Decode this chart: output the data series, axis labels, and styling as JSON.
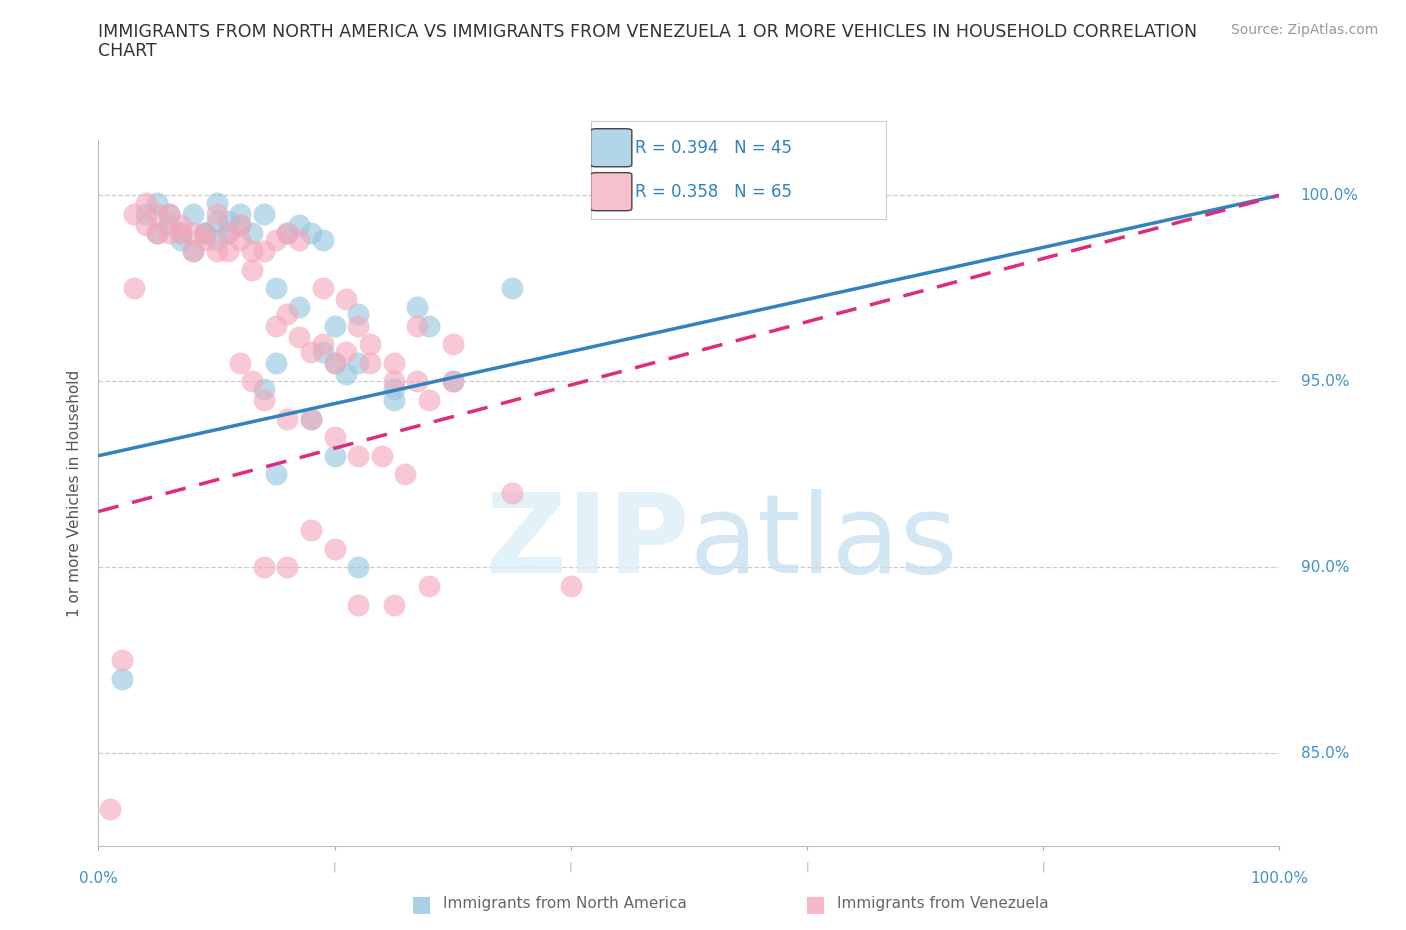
{
  "title_line1": "IMMIGRANTS FROM NORTH AMERICA VS IMMIGRANTS FROM VENEZUELA 1 OR MORE VEHICLES IN HOUSEHOLD CORRELATION",
  "title_line2": "CHART",
  "source": "Source: ZipAtlas.com",
  "ylabel": "1 or more Vehicles in Household",
  "yticks": [
    85.0,
    90.0,
    95.0,
    100.0
  ],
  "ytick_labels": [
    "85.0%",
    "90.0%",
    "95.0%",
    "100.0%"
  ],
  "xrange": [
    0.0,
    1.0
  ],
  "yrange": [
    82.5,
    101.5
  ],
  "blue_color": "#92c5de",
  "pink_color": "#f4a6b8",
  "trend_blue": "#3182bd",
  "trend_pink": "#de2d80",
  "legend_r_blue": "R = 0.394",
  "legend_n_blue": "N = 45",
  "legend_r_pink": "R = 0.358",
  "legend_n_pink": "N = 65",
  "legend_text_color": "#3182bd",
  "blue_label": "Immigrants from North America",
  "pink_label": "Immigrants from Venezuela",
  "blue_points_x": [
    0.02,
    0.04,
    0.05,
    0.05,
    0.06,
    0.06,
    0.07,
    0.07,
    0.08,
    0.08,
    0.09,
    0.09,
    0.1,
    0.1,
    0.1,
    0.11,
    0.11,
    0.12,
    0.12,
    0.13,
    0.14,
    0.15,
    0.16,
    0.17,
    0.18,
    0.19,
    0.2,
    0.22,
    0.25,
    0.28,
    0.19,
    0.2,
    0.21,
    0.3,
    0.22,
    0.25,
    0.27,
    0.35,
    0.15,
    0.14,
    0.15,
    0.17,
    0.18,
    0.2,
    0.22
  ],
  "blue_points_y": [
    87.0,
    99.5,
    99.8,
    99.0,
    99.5,
    99.2,
    99.0,
    98.8,
    99.5,
    98.5,
    99.0,
    99.0,
    99.3,
    98.8,
    99.8,
    99.0,
    99.3,
    99.2,
    99.5,
    99.0,
    99.5,
    97.5,
    99.0,
    99.2,
    99.0,
    98.8,
    96.5,
    96.8,
    94.5,
    96.5,
    95.8,
    95.5,
    95.2,
    95.0,
    95.5,
    94.8,
    97.0,
    97.5,
    95.5,
    94.8,
    92.5,
    97.0,
    94.0,
    93.0,
    90.0
  ],
  "pink_points_x": [
    0.01,
    0.02,
    0.03,
    0.03,
    0.04,
    0.04,
    0.05,
    0.05,
    0.06,
    0.06,
    0.07,
    0.07,
    0.08,
    0.08,
    0.09,
    0.09,
    0.1,
    0.1,
    0.11,
    0.11,
    0.12,
    0.12,
    0.13,
    0.13,
    0.14,
    0.15,
    0.16,
    0.17,
    0.18,
    0.19,
    0.2,
    0.21,
    0.22,
    0.23,
    0.25,
    0.27,
    0.15,
    0.16,
    0.17,
    0.19,
    0.21,
    0.23,
    0.25,
    0.28,
    0.3,
    0.14,
    0.16,
    0.18,
    0.2,
    0.22,
    0.24,
    0.26,
    0.3,
    0.35,
    0.12,
    0.13,
    0.4,
    0.25,
    0.28,
    0.22,
    0.18,
    0.2,
    0.16,
    0.14,
    0.27
  ],
  "pink_points_y": [
    83.5,
    87.5,
    99.5,
    97.5,
    99.8,
    99.2,
    99.5,
    99.0,
    99.5,
    99.0,
    99.2,
    99.0,
    99.0,
    98.5,
    99.0,
    98.8,
    99.5,
    98.5,
    99.0,
    98.5,
    99.2,
    98.8,
    98.5,
    98.0,
    98.5,
    98.8,
    99.0,
    98.8,
    95.8,
    97.5,
    95.5,
    97.2,
    96.5,
    96.0,
    95.5,
    95.0,
    96.5,
    96.8,
    96.2,
    96.0,
    95.8,
    95.5,
    95.0,
    94.5,
    96.0,
    94.5,
    94.0,
    94.0,
    93.5,
    93.0,
    93.0,
    92.5,
    95.0,
    92.0,
    95.5,
    95.0,
    89.5,
    89.0,
    89.5,
    89.0,
    91.0,
    90.5,
    90.0,
    90.0,
    96.5
  ]
}
